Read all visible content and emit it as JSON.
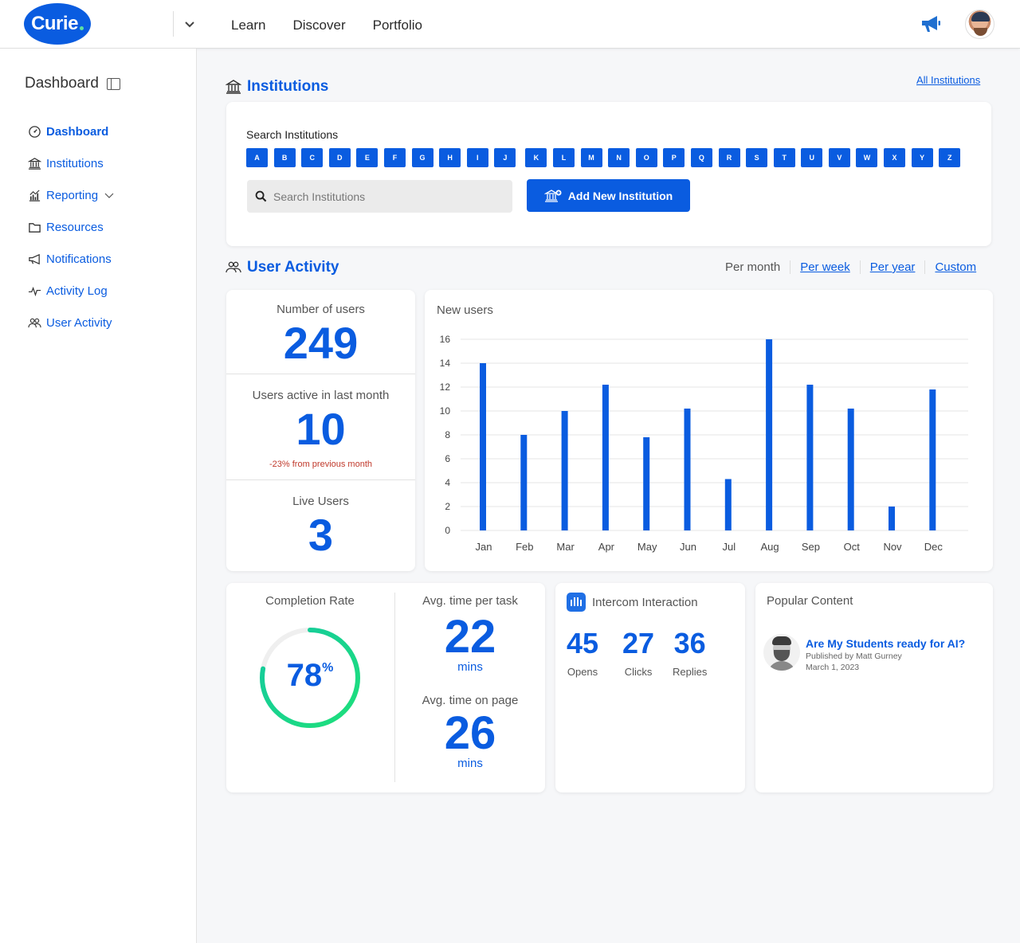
{
  "brand": {
    "logo_text": "Curie",
    "accent": "#0a5ce0"
  },
  "topnav": {
    "items": [
      "Learn",
      "Discover",
      "Portfolio"
    ]
  },
  "sidebar": {
    "title": "Dashboard",
    "items": [
      {
        "label": "Dashboard",
        "icon": "dashboard-gauge-icon",
        "active": true
      },
      {
        "label": "Institutions",
        "icon": "bank-icon"
      },
      {
        "label": "Reporting",
        "icon": "chart-icon",
        "has_submenu": true
      },
      {
        "label": "Resources",
        "icon": "folder-icon"
      },
      {
        "label": "Notifications",
        "icon": "megaphone-icon"
      },
      {
        "label": "Activity Log",
        "icon": "activity-icon"
      },
      {
        "label": "User Activity",
        "icon": "users-icon"
      }
    ]
  },
  "institutions": {
    "title": "Institutions",
    "all_link": "All Institutions",
    "search_label": "Search Institutions",
    "letters": [
      "A",
      "B",
      "C",
      "D",
      "E",
      "F",
      "G",
      "H",
      "I",
      "J",
      "K",
      "L",
      "M",
      "N",
      "O",
      "P",
      "Q",
      "R",
      "S",
      "T",
      "U",
      "V",
      "W",
      "X",
      "Y",
      "Z"
    ],
    "search_placeholder": "Search Institutions",
    "add_button": "Add New Institution"
  },
  "user_activity": {
    "title": "User Activity",
    "periods": [
      "Per month",
      "Per week",
      "Per year",
      "Custom"
    ],
    "number_of_users_label": "Number of users",
    "number_of_users": "249",
    "active_label": "Users active in last month",
    "active_value": "10",
    "active_change": "-23% from previous month",
    "live_label": "Live Users",
    "live_value": "3"
  },
  "chart_data": {
    "type": "bar",
    "title": "New users",
    "categories": [
      "Jan",
      "Feb",
      "Mar",
      "Apr",
      "May",
      "Jun",
      "Jul",
      "Aug",
      "Sep",
      "Oct",
      "Nov",
      "Dec"
    ],
    "values": [
      14,
      8,
      10,
      12.2,
      7.8,
      10.2,
      4.3,
      16,
      12.2,
      10.2,
      2,
      11.8
    ],
    "ylim": [
      0,
      16
    ],
    "yticks": [
      0,
      2,
      4,
      6,
      8,
      10,
      12,
      14,
      16
    ],
    "grid": true,
    "bar_color": "#0a5ce0"
  },
  "completion": {
    "label": "Completion Rate",
    "value": "78",
    "unit": "%",
    "fraction": 0.78,
    "task_label": "Avg. time per task",
    "task_value": "22",
    "task_unit": "mins",
    "page_label": "Avg. time on page",
    "page_value": "26",
    "page_unit": "mins"
  },
  "intercom": {
    "title": "Intercom Interaction",
    "stats": [
      {
        "value": "45",
        "label": "Opens"
      },
      {
        "value": "27",
        "label": "Clicks"
      },
      {
        "value": "36",
        "label": "Replies"
      }
    ]
  },
  "popular": {
    "title": "Popular Content",
    "item_title": "Are My Students ready for AI?",
    "item_author": "Published by Matt Gurney",
    "item_date": "March 1, 2023"
  }
}
